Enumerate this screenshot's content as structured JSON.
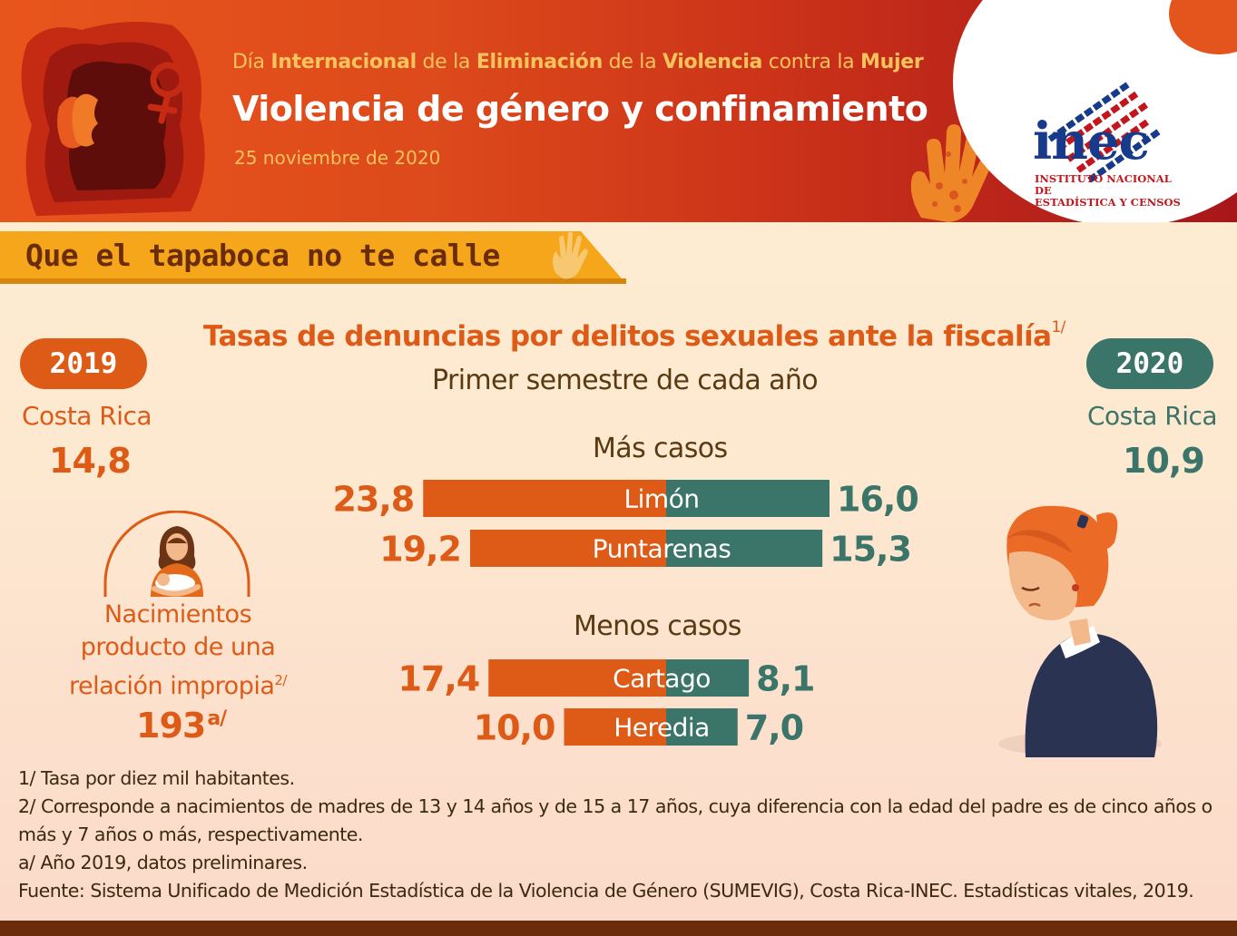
{
  "header": {
    "line1_parts": [
      {
        "text": "Día ",
        "bold": false
      },
      {
        "text": "Internacional",
        "bold": true
      },
      {
        "text": " de la ",
        "bold": false
      },
      {
        "text": "Eliminación",
        "bold": true
      },
      {
        "text": " de la ",
        "bold": false
      },
      {
        "text": "Violencia",
        "bold": true
      },
      {
        "text": " contra la ",
        "bold": false
      },
      {
        "text": "Mujer",
        "bold": true
      }
    ],
    "title": "Violencia de género y confinamiento",
    "date": "25  noviembre de 2020"
  },
  "logo": {
    "word": "inec",
    "subtitle_line1": "INSTITUTO NACIONAL DE",
    "subtitle_line2": "ESTADÍSTICA Y CENSOS"
  },
  "banner": {
    "text": "Que el tapaboca no te calle"
  },
  "left_panel": {
    "year": "2019",
    "label": "Costa Rica",
    "value": "14,8",
    "births_line1": "Nacimientos",
    "births_line2": "producto de una",
    "births_line3": "relación impropia",
    "births_note": "2/",
    "births_value": "193",
    "births_value_note": "a/"
  },
  "right_panel": {
    "year": "2020",
    "label": "Costa Rica",
    "value": "10,9"
  },
  "colors": {
    "y2019": "#dd5b17",
    "y2020": "#3b7468",
    "header_start": "#e8551c",
    "header_end": "#a8161a",
    "banner": "#f5a61a",
    "text_brown": "#5a3a12"
  },
  "chart_data": {
    "type": "bar",
    "title": "Tasas de denuncias por delitos sexuales ante la fiscalía",
    "title_note": "1/",
    "subtitle": "Primer semestre de cada año",
    "series": [
      {
        "name": "2019",
        "values": [
          23.8,
          19.2,
          17.4,
          10.0
        ]
      },
      {
        "name": "2020",
        "values": [
          16.0,
          15.3,
          8.1,
          7.0
        ]
      }
    ],
    "categories": [
      "Limón",
      "Puntarenas",
      "Cartago",
      "Heredia"
    ],
    "labels_2019": [
      "23,8",
      "19,2",
      "17,4",
      "10,0"
    ],
    "labels_2020": [
      "16,0",
      "15,3",
      "8,1",
      "7,0"
    ],
    "groups": [
      {
        "title": "Más casos",
        "categories": [
          "Limón",
          "Puntarenas"
        ]
      },
      {
        "title": "Menos casos",
        "categories": [
          "Cartago",
          "Heredia"
        ]
      }
    ]
  },
  "notes": [
    "1/ Tasa por diez mil habitantes.",
    "2/ Corresponde a nacimientos de madres de 13 y 14 años y de 15 a 17 años, cuya diferencia con la edad del padre es de cinco años o más y 7 años o más, respectivamente.",
    "a/ Año 2019, datos preliminares.",
    "Fuente: Sistema Unificado de Medición Estadística de la Violencia de Género (SUMEVIG), Costa Rica-INEC. Estadísticas vitales, 2019."
  ]
}
